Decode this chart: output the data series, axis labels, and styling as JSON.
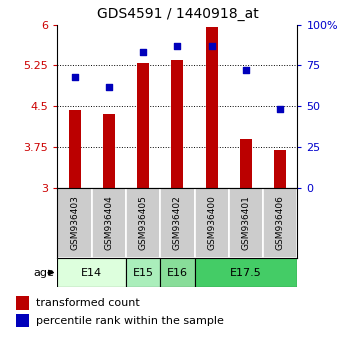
{
  "title": "GDS4591 / 1440918_at",
  "samples": [
    "GSM936403",
    "GSM936404",
    "GSM936405",
    "GSM936402",
    "GSM936400",
    "GSM936401",
    "GSM936406"
  ],
  "transformed_counts": [
    4.43,
    4.35,
    5.3,
    5.35,
    5.95,
    3.9,
    3.7
  ],
  "percentile_ranks": [
    68,
    62,
    83,
    87,
    87,
    72,
    48
  ],
  "ylim_left": [
    3,
    6
  ],
  "ylim_right": [
    0,
    100
  ],
  "yticks_left": [
    3,
    3.75,
    4.5,
    5.25,
    6
  ],
  "yticks_right": [
    0,
    25,
    50,
    75,
    100
  ],
  "ytick_labels_left": [
    "3",
    "3.75",
    "4.5",
    "5.25",
    "6"
  ],
  "ytick_labels_right": [
    "0",
    "25",
    "50",
    "75",
    "100%"
  ],
  "bar_color": "#bb0000",
  "dot_color": "#0000bb",
  "age_groups": [
    {
      "label": "E14",
      "samples": [
        "GSM936403",
        "GSM936404"
      ],
      "color": "#ddffdd"
    },
    {
      "label": "E15",
      "samples": [
        "GSM936405"
      ],
      "color": "#aaeebb"
    },
    {
      "label": "E16",
      "samples": [
        "GSM936402"
      ],
      "color": "#88dd99"
    },
    {
      "label": "E17.5",
      "samples": [
        "GSM936400",
        "GSM936401",
        "GSM936406"
      ],
      "color": "#44cc66"
    }
  ],
  "sample_bg_color": "#cccccc",
  "legend_bar_label": "transformed count",
  "legend_dot_label": "percentile rank within the sample",
  "ylabel_left_color": "#cc0000",
  "ylabel_right_color": "#0000cc",
  "gridline_ticks": [
    3.75,
    4.5,
    5.25
  ],
  "bar_width": 0.35
}
